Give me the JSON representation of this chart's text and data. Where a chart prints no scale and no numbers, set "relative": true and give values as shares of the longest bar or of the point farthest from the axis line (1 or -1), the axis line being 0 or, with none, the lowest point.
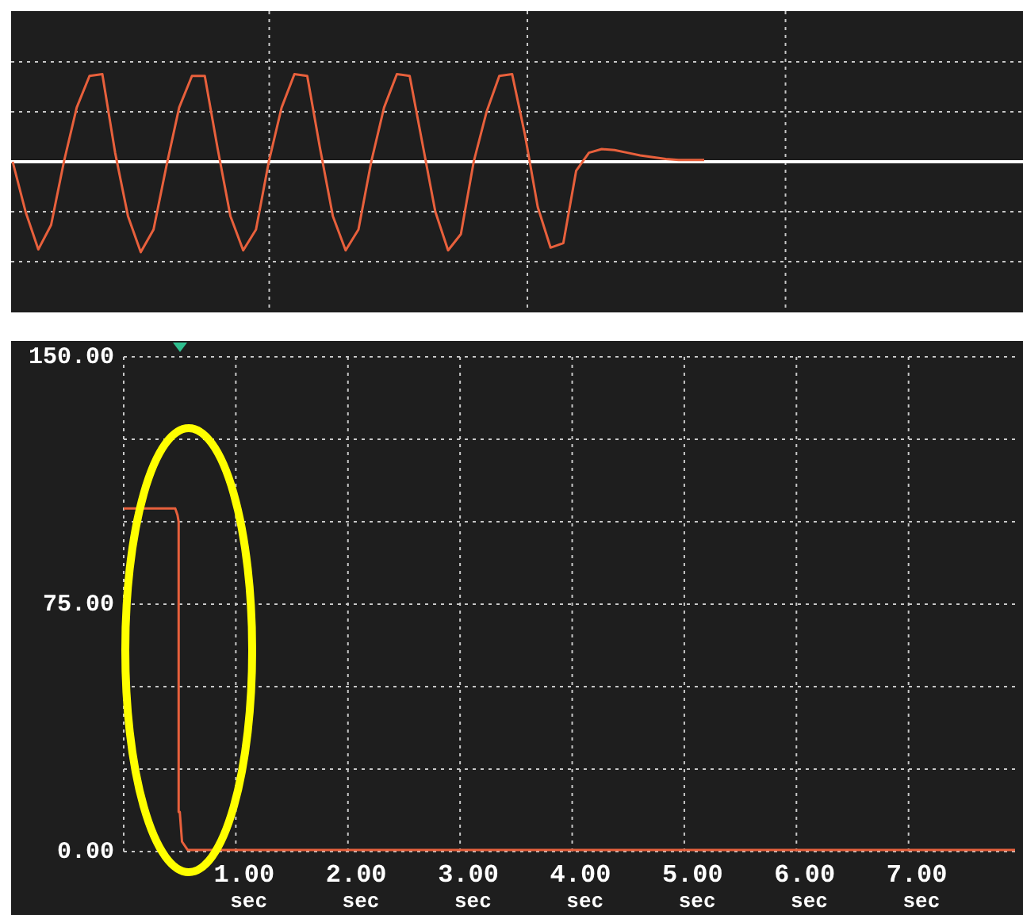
{
  "chart_data": [
    {
      "type": "line",
      "relative": true,
      "grid": true,
      "categories": [
        null,
        null,
        null,
        null,
        null,
        null,
        null,
        null,
        null,
        null,
        null,
        null,
        null,
        null,
        null,
        null,
        null,
        null,
        null,
        null,
        null,
        null,
        null,
        null,
        null,
        null,
        null,
        null,
        null,
        null,
        null,
        null,
        null,
        null,
        null,
        null,
        null,
        null,
        null,
        null,
        null,
        null,
        null,
        null,
        null,
        null,
        null,
        null,
        null,
        null,
        null,
        null,
        null,
        null,
        null
      ],
      "series": [
        {
          "color": "#e8603c",
          "values": [
            0,
            -0.55,
            -0.97,
            -0.7,
            0,
            0.6,
            0.95,
            0.97,
            0.1,
            -0.6,
            -1,
            -0.75,
            -0.05,
            0.6,
            0.95,
            0.95,
            0.15,
            -0.6,
            -0.98,
            -0.75,
            0,
            0.6,
            0.97,
            0.95,
            0.15,
            -0.6,
            -0.98,
            -0.75,
            0,
            0.6,
            0.97,
            0.95,
            0.2,
            -0.55,
            -0.98,
            -0.8,
            0,
            0.55,
            0.95,
            0.97,
            0.3,
            -0.5,
            -0.95,
            -0.9,
            -0.1,
            0.1,
            0.14,
            0.13,
            0.1,
            0.07,
            0.05,
            0.03,
            0.02,
            0.02,
            0.02
          ]
        }
      ]
    },
    {
      "type": "line",
      "grid": true,
      "xlim": [
        0,
        7.95
      ],
      "ylim": [
        0,
        150
      ],
      "xticks": [
        {
          "value": 1,
          "label": "1.00$_{sec}$"
        },
        {
          "value": 2,
          "label": "2.00$_{sec}$"
        },
        {
          "value": 3,
          "label": "3.00$_{sec}$"
        },
        {
          "value": 4,
          "label": "4.00$_{sec}$"
        },
        {
          "value": 5,
          "label": "5.00$_{sec}$"
        },
        {
          "value": 6,
          "label": "6.00$_{sec}$"
        },
        {
          "value": 7,
          "label": "7.00$_{sec}$"
        }
      ],
      "yticks": [
        {
          "value": 0,
          "label": "0.00"
        },
        {
          "value": 25,
          "label": null
        },
        {
          "value": 50,
          "label": null
        },
        {
          "value": 75,
          "label": "75.00"
        },
        {
          "value": 100,
          "label": null
        },
        {
          "value": 125,
          "label": null
        },
        {
          "value": 150,
          "label": "150.00"
        }
      ],
      "series": [
        {
          "color": "#e8603c",
          "x": [
            0,
            0.46,
            0.48,
            0.49,
            0.49,
            0.5,
            0.52,
            0.57,
            7.95
          ],
          "values": [
            104,
            104,
            102,
            100,
            12,
            12,
            3,
            0.5,
            0.5
          ]
        }
      ]
    }
  ]
}
